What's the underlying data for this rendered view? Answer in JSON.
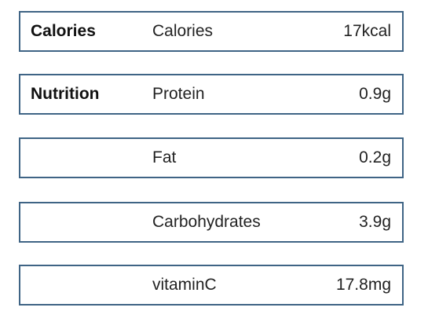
{
  "rows": [
    {
      "section": "Calories",
      "name": "Calories",
      "value": "17kcal"
    },
    {
      "section": "Nutrition",
      "name": "Protein",
      "value": "0.9g"
    },
    {
      "section": "",
      "name": "Fat",
      "value": "0.2g"
    },
    {
      "section": "",
      "name": "Carbohydrates",
      "value": "3.9g"
    },
    {
      "section": "",
      "name": "vitaminC",
      "value": "17.8mg"
    }
  ],
  "colors": {
    "border": "#3f6485"
  }
}
